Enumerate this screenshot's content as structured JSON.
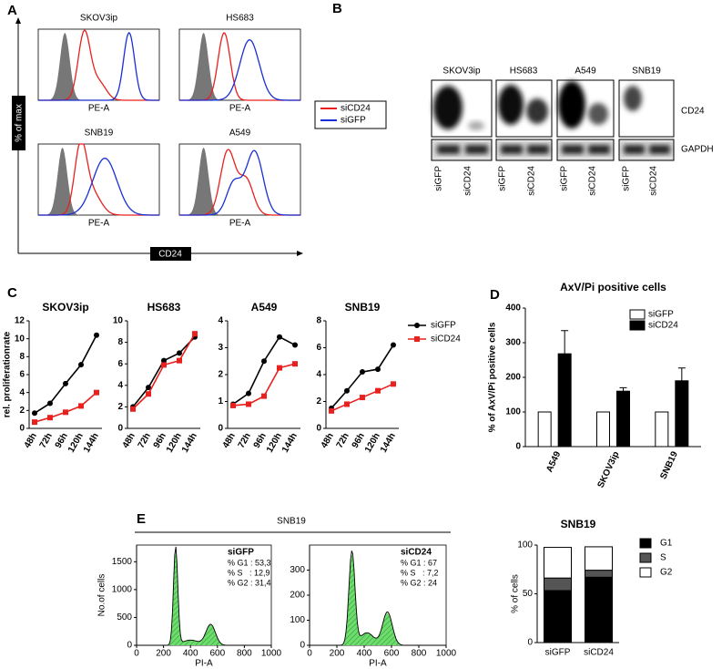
{
  "panel_labels": [
    "A",
    "B",
    "C",
    "D",
    "E"
  ],
  "panel_a": {
    "y_axis_label": "% of max",
    "x_axis_label": "CD24",
    "plots": [
      {
        "title": "SKOV3ip",
        "x_label": "PE-A"
      },
      {
        "title": "HS683",
        "x_label": "PE-A"
      },
      {
        "title": "SNB19",
        "x_label": "PE-A"
      },
      {
        "title": "A549",
        "x_label": "PE-A"
      }
    ],
    "legend": [
      {
        "name": "siCD24",
        "color": "#e8201e"
      },
      {
        "name": "siGFP",
        "color": "#1a2fd6"
      }
    ]
  },
  "panel_b": {
    "cell_lines": [
      "SKOV3ip",
      "HS683",
      "A549",
      "SNB19"
    ],
    "lanes": [
      "siGFP",
      "siCD24"
    ],
    "rows": [
      "CD24",
      "GAPDH"
    ]
  },
  "panel_e": {
    "title": "SNB19"
  },
  "chart_data": [
    {
      "type": "line",
      "title": "SKOV3ip",
      "y_label": "rel. proliferationrate",
      "categories": [
        "48h",
        "72h",
        "96h",
        "120h",
        "144h"
      ],
      "series": [
        {
          "color": "#000000",
          "marker": "circle",
          "values": [
            1.7,
            2.8,
            5.0,
            7.1,
            10.4
          ]
        },
        {
          "color": "#e8201e",
          "marker": "square",
          "values": [
            0.7,
            1.2,
            1.8,
            2.5,
            4.0
          ]
        }
      ],
      "ylim": [
        0,
        12
      ],
      "yticks": [
        0,
        2,
        4,
        6,
        8,
        10,
        12
      ]
    },
    {
      "type": "line",
      "title": "HS683",
      "categories": [
        "48h",
        "72h",
        "96h",
        "120h",
        "144h"
      ],
      "series": [
        {
          "color": "#000000",
          "marker": "circle",
          "values": [
            2.0,
            3.8,
            6.3,
            7.0,
            8.5
          ]
        },
        {
          "color": "#e8201e",
          "marker": "square",
          "values": [
            1.8,
            3.2,
            5.9,
            6.3,
            8.8
          ]
        }
      ],
      "ylim": [
        0,
        10
      ],
      "yticks": [
        0,
        2,
        4,
        6,
        8,
        10
      ]
    },
    {
      "type": "line",
      "title": "A549",
      "categories": [
        "48h",
        "72h",
        "96h",
        "120h",
        "144h"
      ],
      "series": [
        {
          "color": "#000000",
          "marker": "circle",
          "values": [
            0.9,
            1.3,
            2.5,
            3.4,
            3.1
          ]
        },
        {
          "color": "#e8201e",
          "marker": "square",
          "values": [
            0.85,
            0.9,
            1.2,
            2.25,
            2.4
          ]
        }
      ],
      "ylim": [
        0,
        4
      ],
      "yticks": [
        0,
        1,
        2,
        3,
        4
      ]
    },
    {
      "type": "line",
      "title": "SNB19",
      "categories": [
        "48h",
        "72h",
        "96h",
        "120h",
        "144h"
      ],
      "series": [
        {
          "name": "siGFP",
          "color": "#000000",
          "marker": "circle",
          "values": [
            1.5,
            2.8,
            4.2,
            4.4,
            6.2
          ]
        },
        {
          "name": "siCD24",
          "color": "#e8201e",
          "marker": "square",
          "values": [
            1.3,
            1.8,
            2.3,
            2.8,
            3.3
          ]
        }
      ],
      "ylim": [
        0,
        8
      ],
      "yticks": [
        0,
        2,
        4,
        6,
        8
      ],
      "legend": true
    },
    {
      "type": "bar",
      "title": "AxV/Pi positive cells",
      "y_label": "% of AxV/Pi positive cells",
      "categories": [
        "A549",
        "SKOV3ip",
        "SNB19"
      ],
      "series": [
        {
          "name": "siGFP",
          "color": "#ffffff",
          "values": [
            100,
            100,
            100
          ]
        },
        {
          "name": "siCD24",
          "color": "#000000",
          "values": [
            268,
            160,
            190
          ],
          "errors": [
            67,
            10,
            37
          ]
        }
      ],
      "ylim": [
        0,
        400
      ],
      "yticks": [
        0,
        100,
        200,
        300,
        400
      ],
      "legend": true
    },
    {
      "type": "histogram",
      "label": "siGFP",
      "annotations": [
        "% G1 : 53,3",
        "% S   : 12,9",
        "% G2 : 31,4"
      ],
      "x_label": "PI-A",
      "y_label": "No.of cells",
      "xlim": [
        0,
        1000
      ],
      "xticks": [
        0,
        200,
        400,
        600,
        800,
        1000
      ],
      "ylim": [
        0,
        1800
      ],
      "yticks": [
        0,
        500,
        1000,
        1500
      ]
    },
    {
      "type": "histogram",
      "label": "siCD24",
      "annotations": [
        "% G1 : 67",
        "% S   : 7,2",
        "% G2 : 24"
      ],
      "x_label": "PI-A",
      "xlim": [
        0,
        1000
      ],
      "xticks": [
        0,
        200,
        400,
        600,
        800,
        1000
      ],
      "ylim": [
        0,
        400
      ],
      "yticks": [
        0,
        100,
        200,
        300
      ]
    },
    {
      "type": "stacked_bar",
      "title": "SNB19",
      "y_label": "% of cells",
      "categories": [
        "siGFP",
        "siCD24"
      ],
      "series": [
        {
          "name": "G1",
          "color": "#000000",
          "values": [
            53.3,
            67
          ]
        },
        {
          "name": "S",
          "color": "#555555",
          "values": [
            12.9,
            7.2
          ]
        },
        {
          "name": "G2",
          "color": "#ffffff",
          "values": [
            31.4,
            24
          ]
        }
      ],
      "ylim": [
        0,
        100
      ],
      "yticks": [
        0,
        50,
        100
      ],
      "legend": true
    }
  ]
}
